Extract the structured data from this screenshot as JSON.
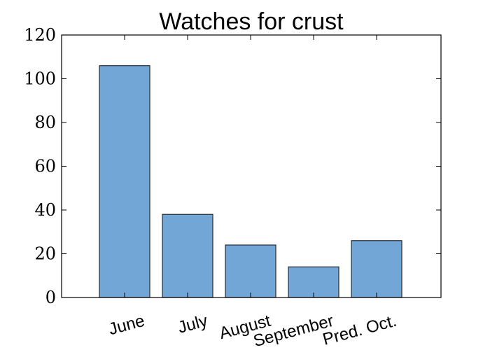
{
  "chart_data": {
    "type": "bar",
    "title": "Watches for crust",
    "xlabel": "",
    "ylabel": "",
    "categories": [
      "June",
      "July",
      "August",
      "September",
      "Pred. Oct."
    ],
    "values": [
      106,
      38,
      24,
      14,
      26
    ],
    "ylim": [
      0,
      120
    ],
    "yticks": [
      0,
      20,
      40,
      60,
      80,
      100,
      120
    ],
    "grid": false,
    "legend": "none",
    "colors": {
      "bar_fill": "#71a6d6",
      "bar_edge": "#2b2b2b",
      "axis": "#000000"
    }
  }
}
